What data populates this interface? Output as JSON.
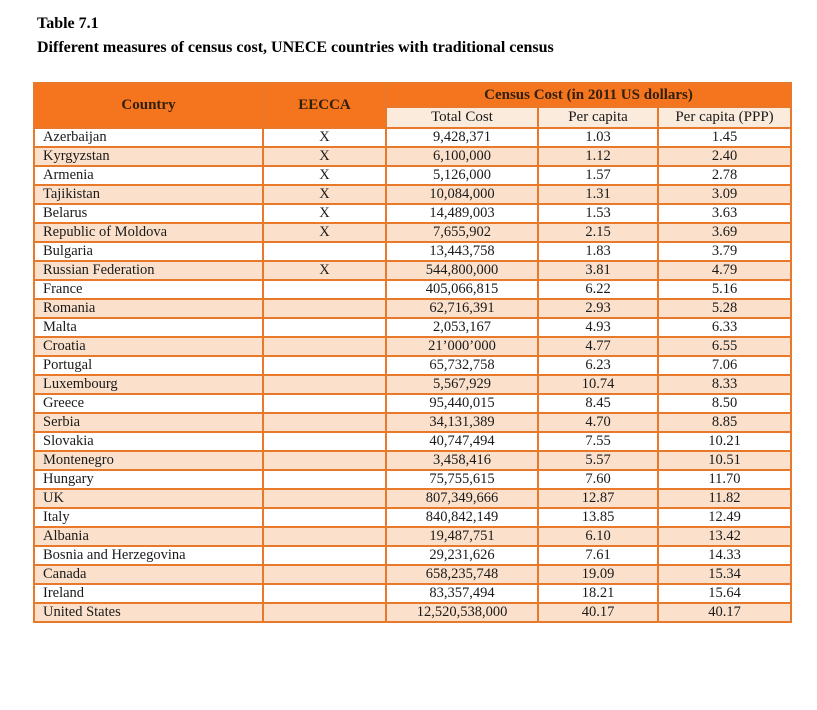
{
  "page": {
    "title_line1": "Table 7.1",
    "title_line2": "Different measures of census cost, UNECE countries with traditional census"
  },
  "table": {
    "header": {
      "country": "Country",
      "eecca": "EECCA",
      "census_cost_group": "Census Cost (in 2011 US dollars)",
      "subcolumns": {
        "total_cost": "Total Cost",
        "per_capita": "Per capita",
        "per_capita_ppp": "Per capita (PPP)"
      }
    },
    "rows": [
      {
        "country": "Azerbaijan",
        "eecca": "X",
        "total_cost": "9,428,371",
        "per_capita": "1.03",
        "per_capita_ppp": "1.45"
      },
      {
        "country": "Kyrgyzstan",
        "eecca": "X",
        "total_cost": "6,100,000",
        "per_capita": "1.12",
        "per_capita_ppp": "2.40"
      },
      {
        "country": "Armenia",
        "eecca": "X",
        "total_cost": "5,126,000",
        "per_capita": "1.57",
        "per_capita_ppp": "2.78"
      },
      {
        "country": "Tajikistan",
        "eecca": "X",
        "total_cost": "10,084,000",
        "per_capita": "1.31",
        "per_capita_ppp": "3.09"
      },
      {
        "country": "Belarus",
        "eecca": "X",
        "total_cost": "14,489,003",
        "per_capita": "1.53",
        "per_capita_ppp": "3.63"
      },
      {
        "country": "Republic of Moldova",
        "eecca": "X",
        "total_cost": "7,655,902",
        "per_capita": "2.15",
        "per_capita_ppp": "3.69"
      },
      {
        "country": "Bulgaria",
        "eecca": "",
        "total_cost": "13,443,758",
        "per_capita": "1.83",
        "per_capita_ppp": "3.79"
      },
      {
        "country": "Russian Federation",
        "eecca": "X",
        "total_cost": "544,800,000",
        "per_capita": "3.81",
        "per_capita_ppp": "4.79"
      },
      {
        "country": "France",
        "eecca": "",
        "total_cost": "405,066,815",
        "per_capita": "6.22",
        "per_capita_ppp": "5.16"
      },
      {
        "country": "Romania",
        "eecca": "",
        "total_cost": "62,716,391",
        "per_capita": "2.93",
        "per_capita_ppp": "5.28"
      },
      {
        "country": "Malta",
        "eecca": "",
        "total_cost": "2,053,167",
        "per_capita": "4.93",
        "per_capita_ppp": "6.33"
      },
      {
        "country": "Croatia",
        "eecca": "",
        "total_cost": "21’000’000",
        "per_capita": "4.77",
        "per_capita_ppp": "6.55"
      },
      {
        "country": "Portugal",
        "eecca": "",
        "total_cost": "65,732,758",
        "per_capita": "6.23",
        "per_capita_ppp": "7.06"
      },
      {
        "country": "Luxembourg",
        "eecca": "",
        "total_cost": "5,567,929",
        "per_capita": "10.74",
        "per_capita_ppp": "8.33"
      },
      {
        "country": "Greece",
        "eecca": "",
        "total_cost": "95,440,015",
        "per_capita": "8.45",
        "per_capita_ppp": "8.50"
      },
      {
        "country": "Serbia",
        "eecca": "",
        "total_cost": "34,131,389",
        "per_capita": "4.70",
        "per_capita_ppp": "8.85"
      },
      {
        "country": "Slovakia",
        "eecca": "",
        "total_cost": "40,747,494",
        "per_capita": "7.55",
        "per_capita_ppp": "10.21"
      },
      {
        "country": "Montenegro",
        "eecca": "",
        "total_cost": "3,458,416",
        "per_capita": "5.57",
        "per_capita_ppp": "10.51"
      },
      {
        "country": "Hungary",
        "eecca": "",
        "total_cost": "75,755,615",
        "per_capita": "7.60",
        "per_capita_ppp": "11.70"
      },
      {
        "country": "UK",
        "eecca": "",
        "total_cost": "807,349,666",
        "per_capita": "12.87",
        "per_capita_ppp": "11.82"
      },
      {
        "country": "Italy",
        "eecca": "",
        "total_cost": "840,842,149",
        "per_capita": "13.85",
        "per_capita_ppp": "12.49"
      },
      {
        "country": "Albania",
        "eecca": "",
        "total_cost": "19,487,751",
        "per_capita": "6.10",
        "per_capita_ppp": "13.42"
      },
      {
        "country": "Bosnia and Herzegovina",
        "eecca": "",
        "total_cost": "29,231,626",
        "per_capita": "7.61",
        "per_capita_ppp": "14.33"
      },
      {
        "country": "Canada",
        "eecca": "",
        "total_cost": "658,235,748",
        "per_capita": "19.09",
        "per_capita_ppp": "15.34"
      },
      {
        "country": "Ireland",
        "eecca": "",
        "total_cost": "83,357,494",
        "per_capita": "18.21",
        "per_capita_ppp": "15.64"
      },
      {
        "country": "United States",
        "eecca": "",
        "total_cost": "12,520,538,000",
        "per_capita": "40.17",
        "per_capita_ppp": "40.17"
      }
    ]
  },
  "colors": {
    "header_bg": "#f5751e",
    "border": "#e8782a",
    "row_alt_bg": "#fbe1cb",
    "subheader_bg": "#faebdc",
    "header_text": "#33200a",
    "data_text": "#1a1a1a"
  }
}
